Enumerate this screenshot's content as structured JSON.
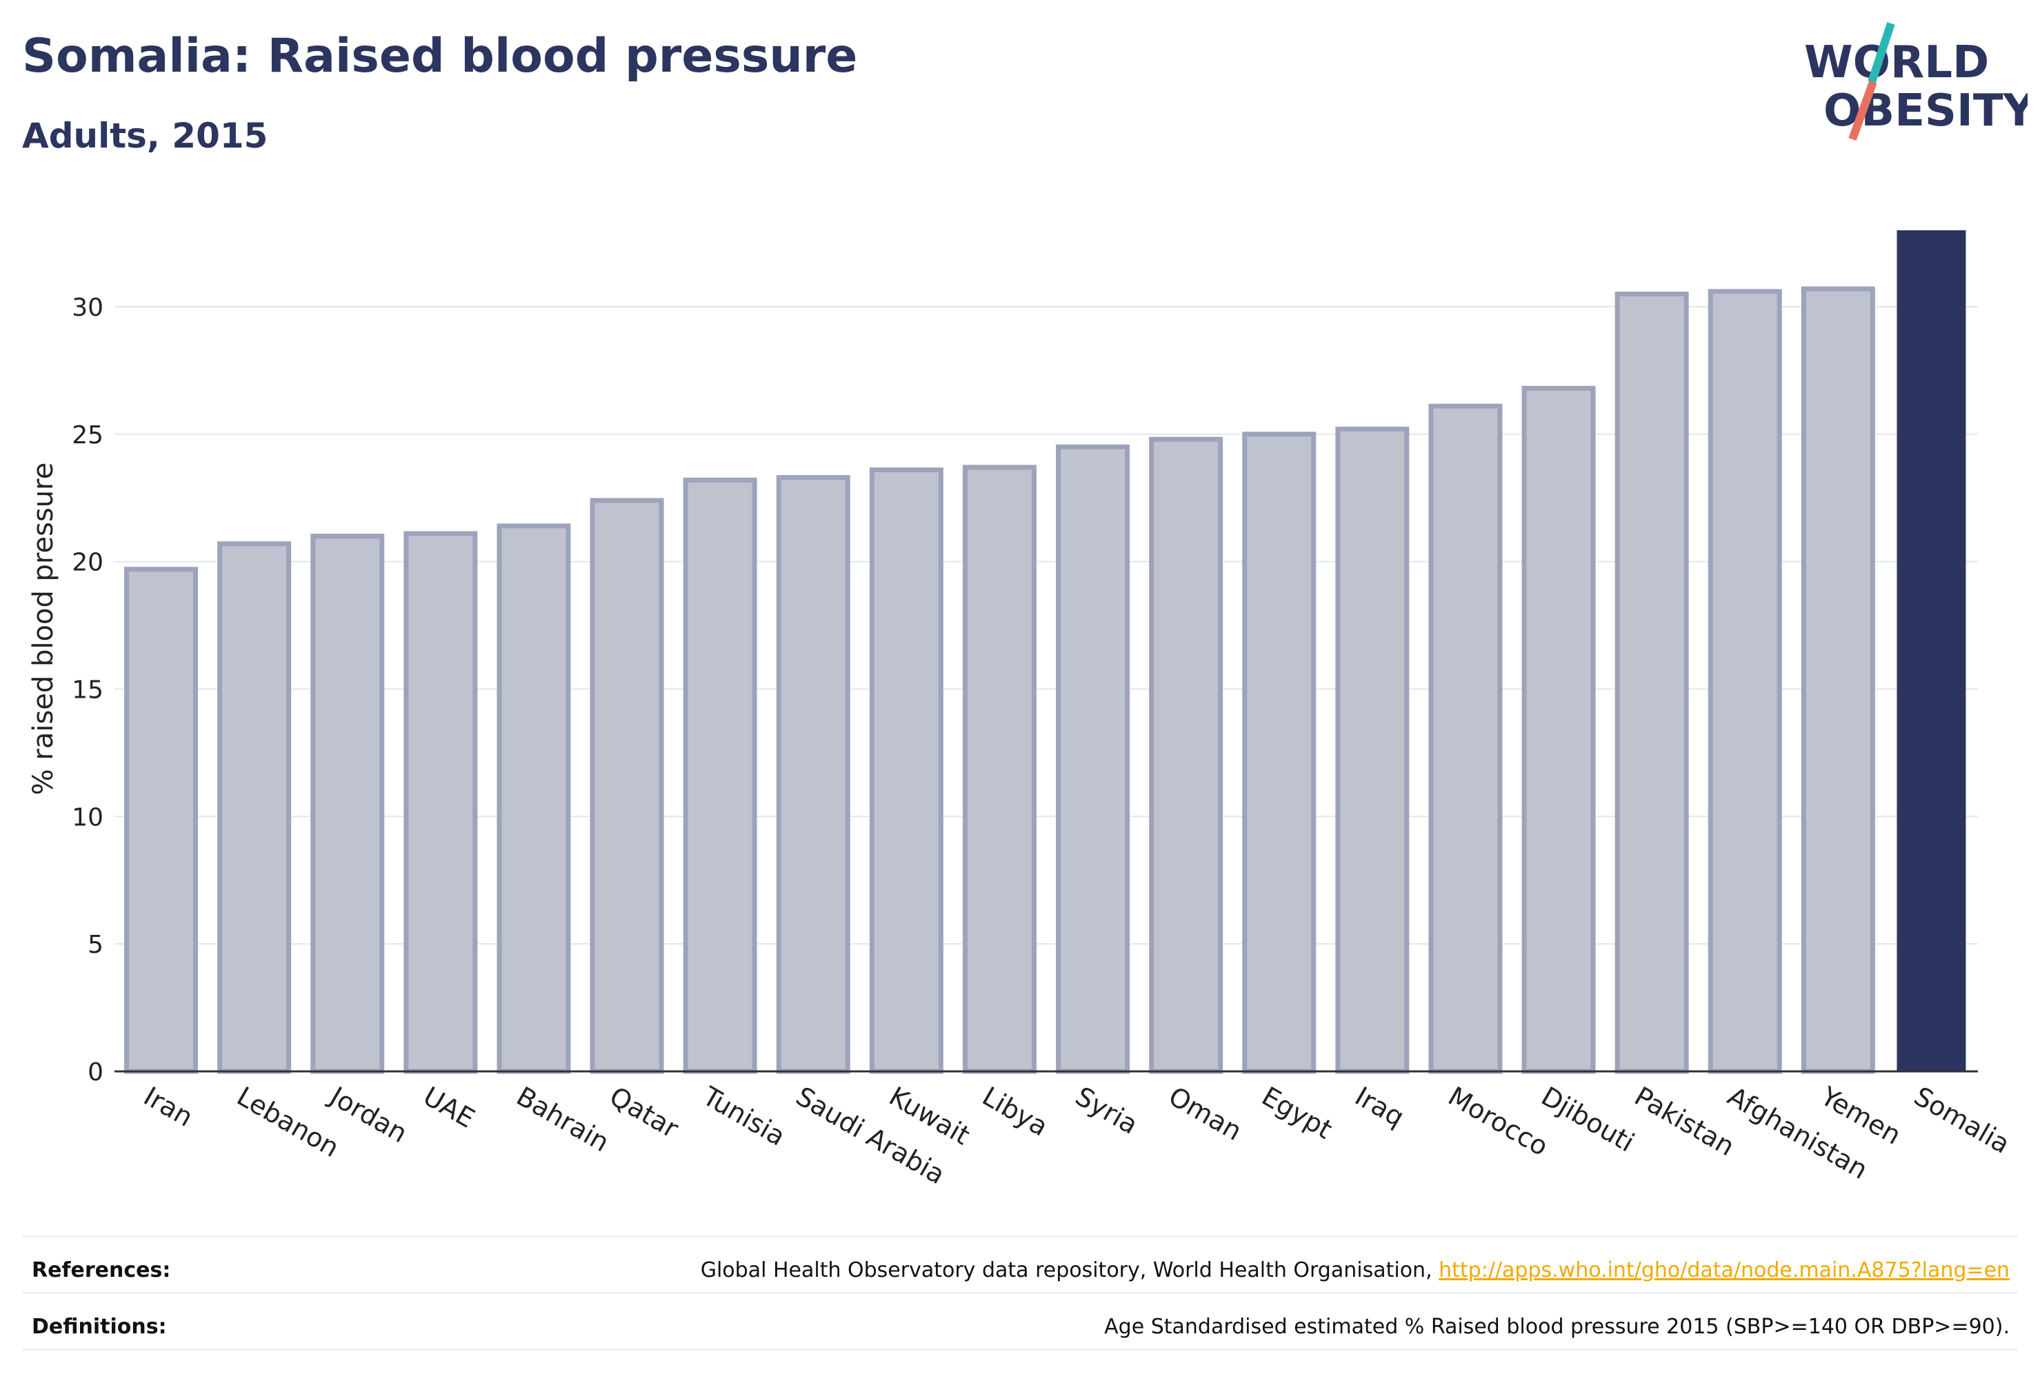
{
  "header": {
    "title": "Somalia: Raised blood pressure",
    "subtitle": "Adults, 2015"
  },
  "logo": {
    "line1": "WORLD",
    "line2": "OBESITY"
  },
  "colors": {
    "highlight": "#2b355f",
    "bar_fill": "#bfc2cf",
    "bar_stroke": "#9da3bb",
    "text": "#2b355f",
    "link": "#f2a900",
    "logo_teal": "#2ab7b1",
    "logo_coral": "#e8705e"
  },
  "chart_data": {
    "type": "bar",
    "ylabel": "% raised blood pressure",
    "ylim": [
      0,
      33
    ],
    "yticks": [
      0,
      5,
      10,
      15,
      20,
      25,
      30
    ],
    "grid": true,
    "categories": [
      "Iran",
      "Lebanon",
      "Jordan",
      "UAE",
      "Bahrain",
      "Qatar",
      "Tunisia",
      "Saudi Arabia",
      "Kuwait",
      "Libya",
      "Syria",
      "Oman",
      "Egypt",
      "Iraq",
      "Morocco",
      "Djibouti",
      "Pakistan",
      "Afghanistan",
      "Yemen",
      "Somalia"
    ],
    "values": [
      19.7,
      20.7,
      21.0,
      21.1,
      21.4,
      22.4,
      23.2,
      23.3,
      23.6,
      23.7,
      24.5,
      24.8,
      25.0,
      25.2,
      26.1,
      26.8,
      30.5,
      30.6,
      30.7,
      33.0
    ],
    "highlight": "Somalia"
  },
  "footer": {
    "references_label": "References:",
    "references_text": "Global Health Observatory data repository, World Health Organisation, ",
    "references_link": "http://apps.who.int/gho/data/node.main.A875?lang=en",
    "definitions_label": "Definitions:",
    "definitions_text": "Age Standardised estimated % Raised blood pressure 2015 (SBP>=140 OR DBP>=90)."
  }
}
